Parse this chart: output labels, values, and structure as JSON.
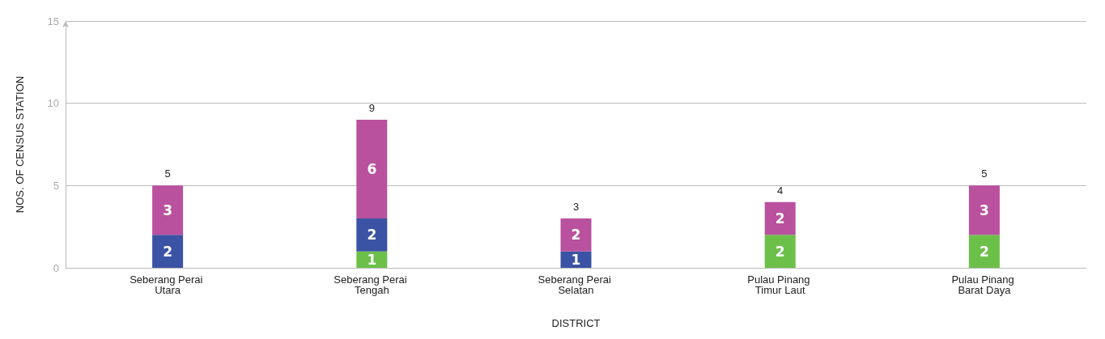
{
  "chart_data": {
    "type": "bar",
    "stacked": true,
    "xlabel": "DISTRICT",
    "ylabel": "NOS. OF CENSUS STATION",
    "categories": [
      "Seberang Perai Utara",
      "Seberang Perai Tengah",
      "Seberang Perai Selatan",
      "Pulau Pinang Timur Laut",
      "Pulau Pinang Barat Daya"
    ],
    "series": [
      {
        "color": "#6cc04a",
        "values": [
          null,
          1,
          null,
          2,
          2
        ]
      },
      {
        "color": "#3a53a4",
        "values": [
          2,
          2,
          1,
          null,
          null
        ]
      },
      {
        "color": "#b9519e",
        "values": [
          3,
          6,
          2,
          2,
          3
        ]
      }
    ],
    "ylim": [
      0,
      15
    ],
    "yticks": [
      0,
      5,
      10,
      15
    ],
    "grid": "y",
    "data_labels": true,
    "totals": [
      "5",
      "9",
      "3",
      "4",
      "5"
    ]
  }
}
